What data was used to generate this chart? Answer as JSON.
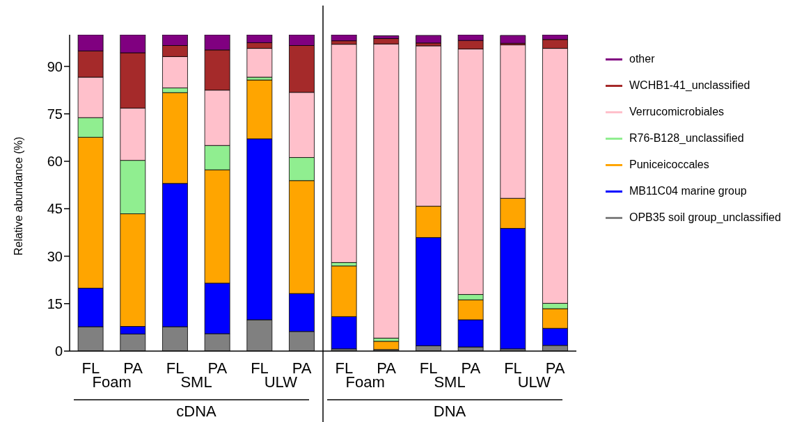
{
  "chart_data": {
    "type": "bar",
    "stacked": true,
    "ylabel": "Relative abundance (%)",
    "categories": [
      "FL",
      "PA",
      "FL",
      "PA",
      "FL",
      "PA",
      "FL",
      "PA",
      "FL",
      "PA",
      "FL",
      "PA"
    ],
    "series": [
      {
        "name": "OPB35 soil group_unclassified",
        "color": "#808080",
        "values": [
          7.7,
          5.4,
          7.7,
          5.5,
          9.9,
          6.2,
          0.7,
          0.5,
          1.7,
          1.3,
          0.7,
          1.8
        ]
      },
      {
        "name": "MB11C04 marine group",
        "color": "#0000ff",
        "values": [
          12.2,
          2.4,
          45.3,
          16.0,
          57.2,
          12.0,
          10.2,
          null,
          34.2,
          8.6,
          38.1,
          5.4
        ]
      },
      {
        "name": "Puniceicoccales",
        "color": "#ffa500",
        "values": [
          47.7,
          35.6,
          28.7,
          35.8,
          18.6,
          35.7,
          16.0,
          2.6,
          9.9,
          6.3,
          9.5,
          6.2
        ]
      },
      {
        "name": "R76-B128_unclassified",
        "color": "#90ee90",
        "values": [
          6.2,
          16.9,
          1.5,
          7.7,
          0.9,
          7.3,
          1.1,
          1.0,
          null,
          1.7,
          null,
          1.7
        ]
      },
      {
        "name": "Verrucomicrobiales",
        "color": "#ffc0cb",
        "values": [
          12.8,
          16.5,
          9.9,
          17.5,
          9.1,
          20.6,
          69.0,
          93.0,
          50.7,
          77.6,
          48.5,
          80.6
        ]
      },
      {
        "name": "WCHB1-41_unclassified",
        "color": "#a52a2a",
        "values": [
          8.3,
          17.5,
          3.5,
          12.7,
          1.8,
          14.8,
          1.1,
          1.7,
          0.9,
          2.7,
          0.5,
          2.8
        ]
      },
      {
        "name": "other",
        "color": "#800080",
        "values": [
          5.1,
          5.7,
          3.4,
          4.8,
          2.5,
          3.4,
          1.9,
          0.9,
          2.4,
          1.8,
          2.5,
          1.5
        ]
      }
    ],
    "ylim": [
      0,
      100
    ],
    "yticks": [
      0,
      15,
      30,
      45,
      60,
      75,
      90
    ],
    "legend": "right",
    "annotations": [
      "Foam",
      "SML",
      "ULW",
      "cDNA",
      "Foam",
      "SML",
      "ULW",
      "DNA"
    ]
  }
}
